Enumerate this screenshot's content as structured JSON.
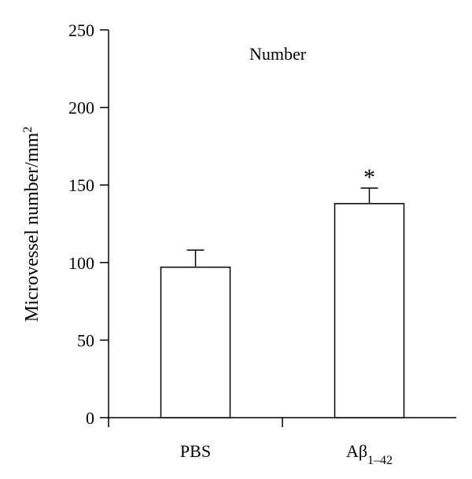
{
  "chart_data": {
    "type": "bar",
    "title": "Number",
    "xlabel": "",
    "ylabel": "Microvessel number/mm",
    "ylabel_superscript": "2",
    "categories": [
      {
        "label": "PBS",
        "sub": ""
      },
      {
        "label": "Aβ",
        "sub": "1–42"
      }
    ],
    "values": [
      97,
      138
    ],
    "errors": [
      11,
      10
    ],
    "significance": [
      "",
      "*"
    ],
    "ylim": [
      0,
      250
    ],
    "yticks": [
      0,
      50,
      100,
      150,
      200,
      250
    ],
    "grid": false,
    "bar_fill": "#ffffff",
    "bar_stroke": "#000000"
  }
}
